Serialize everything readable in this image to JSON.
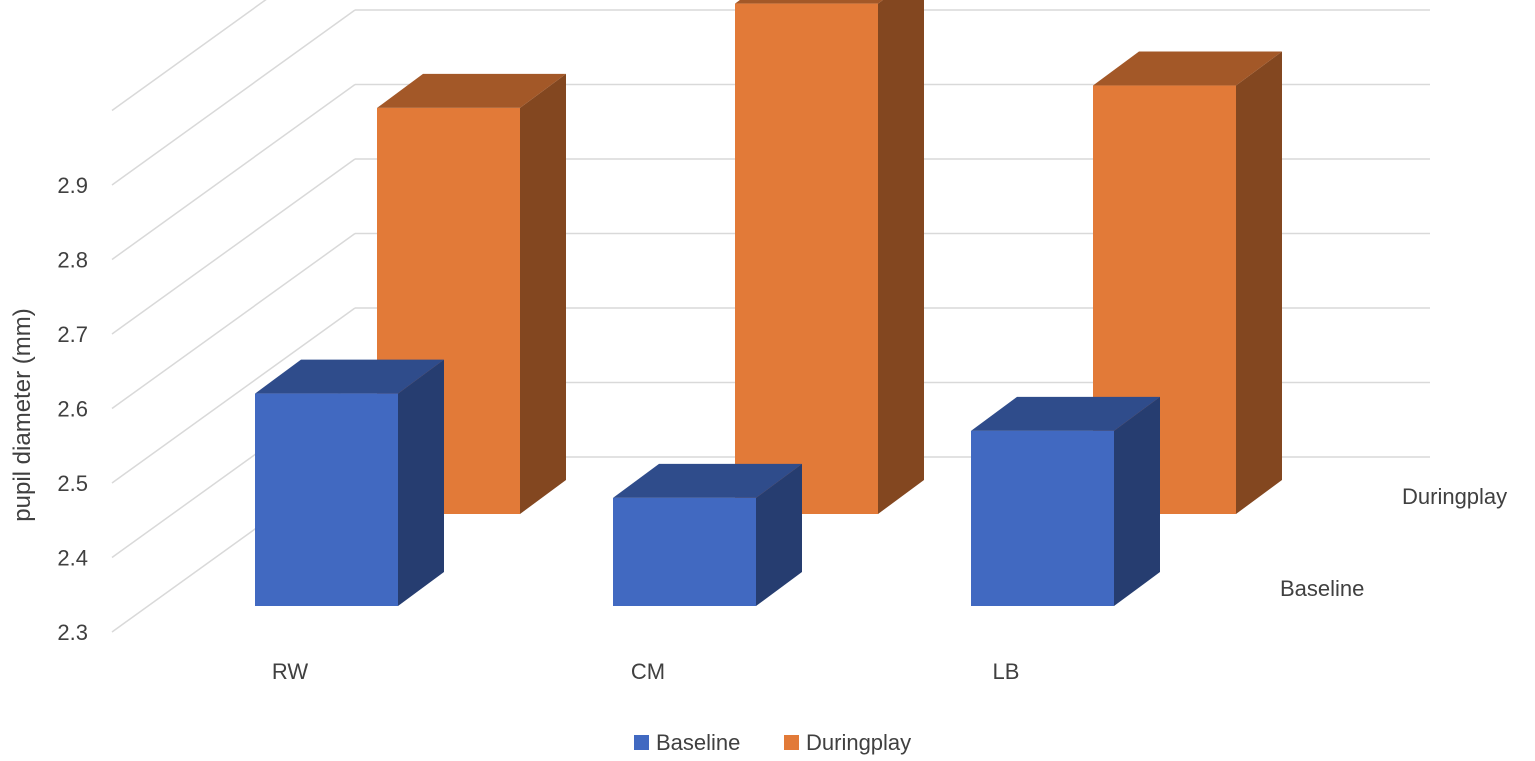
{
  "chart_data": {
    "type": "bar",
    "subtype": "3d-column",
    "categories": [
      "RW",
      "CM",
      "LB"
    ],
    "series": [
      {
        "name": "Baseline",
        "values": [
          2.62,
          2.48,
          2.57
        ],
        "color": "#4169c1"
      },
      {
        "name": "Duringplay",
        "values": [
          2.88,
          3.02,
          2.91
        ],
        "color": "#e27a38"
      }
    ],
    "ylabel": "pupil diameter (mm)",
    "xlabel": "",
    "ylim": [
      2.3,
      3.0
    ],
    "yticks": [
      "2.3",
      "2.4",
      "2.5",
      "2.6",
      "2.7",
      "2.8",
      "2.9"
    ],
    "depth_axis_labels": [
      "Baseline",
      "Duringplay"
    ],
    "grid": true,
    "legend": {
      "position": "bottom",
      "items": [
        "Baseline",
        "Duringplay"
      ]
    }
  }
}
